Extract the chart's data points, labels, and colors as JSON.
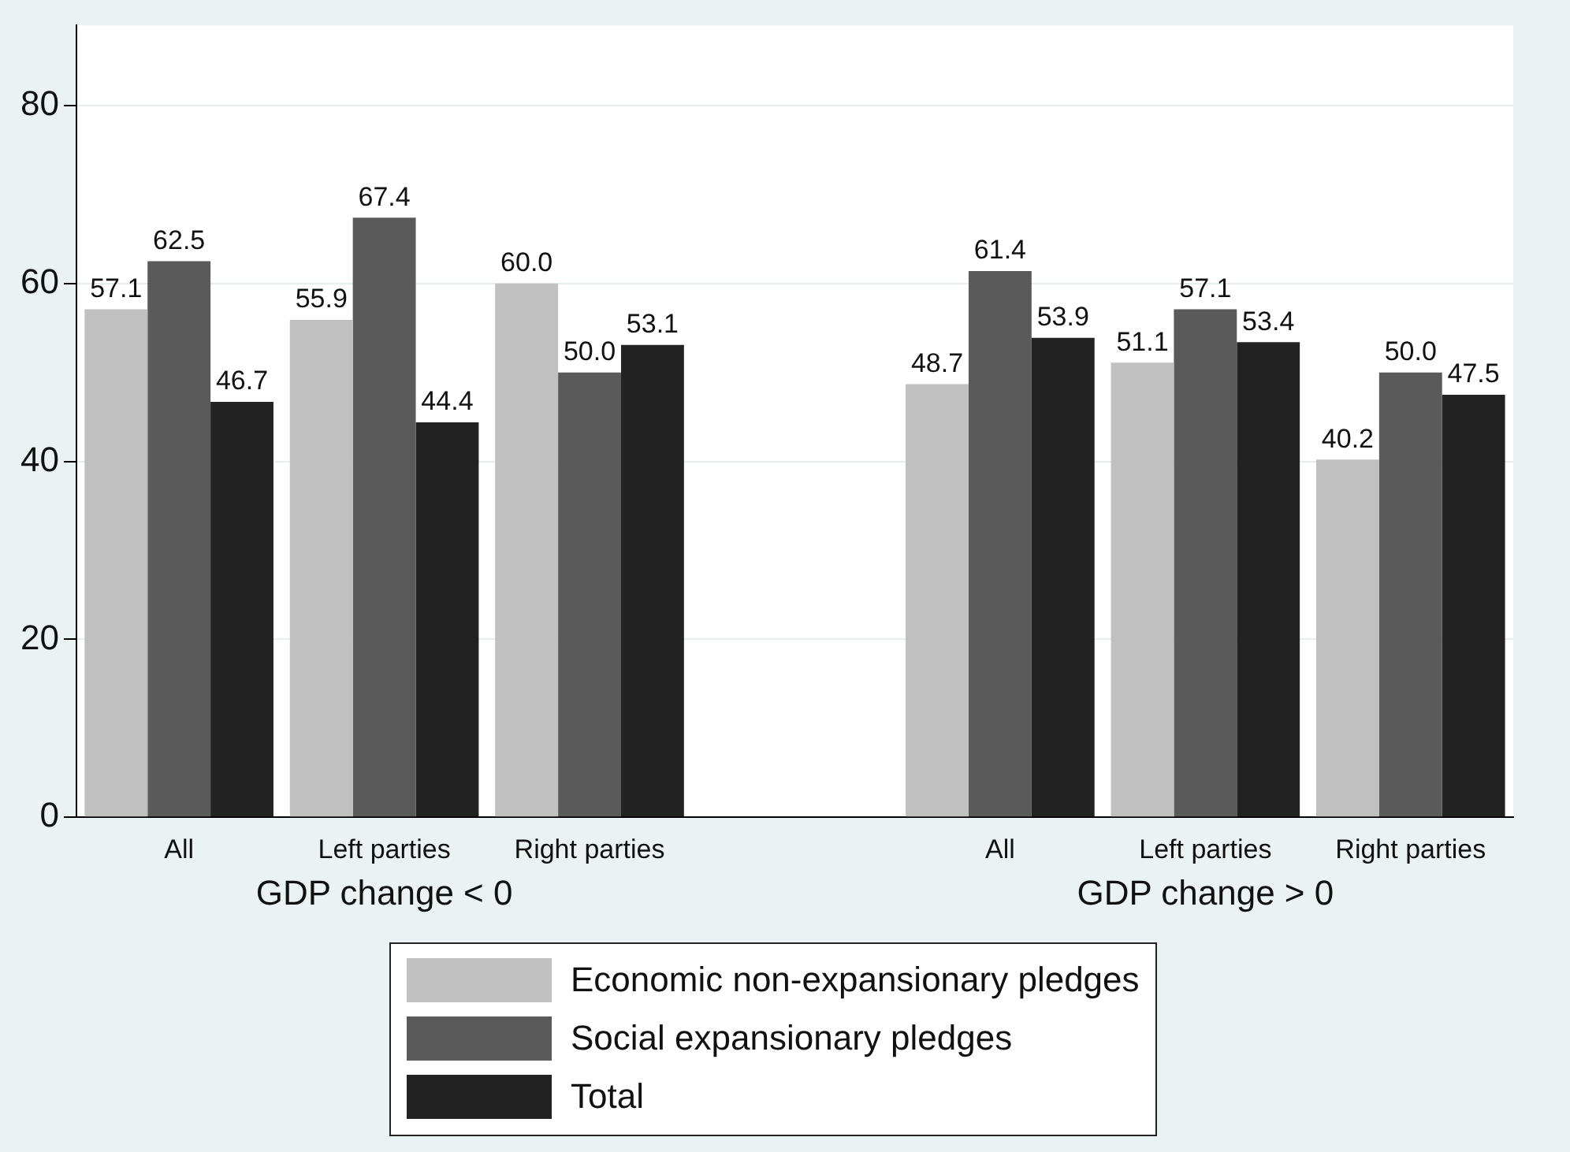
{
  "chart_data": {
    "type": "bar",
    "categories": [
      "All",
      "Left parties",
      "Right parties",
      null,
      "All",
      "Left parties",
      "Right parties"
    ],
    "series": [
      {
        "name": "Economic non-expansionary pledges",
        "color": "#c0c0c0",
        "values": [
          57.1,
          55.9,
          60.0,
          null,
          48.7,
          51.1,
          40.2
        ],
        "value_labels": [
          "57.1",
          "55.9",
          "60.0",
          null,
          "48.7",
          "51.1",
          "40.2"
        ]
      },
      {
        "name": "Social expansionary pledges",
        "color": "#5a5a5a",
        "values": [
          62.5,
          67.4,
          50.0,
          null,
          61.4,
          57.1,
          50.0
        ],
        "value_labels": [
          "62.5",
          "67.4",
          "50.0",
          null,
          "61.4",
          "57.1",
          "50.0"
        ]
      },
      {
        "name": "Total",
        "color": "#222222",
        "values": [
          46.7,
          44.4,
          53.1,
          null,
          53.9,
          53.4,
          47.5
        ],
        "value_labels": [
          "46.7",
          "44.4",
          "53.1",
          null,
          "53.9",
          "53.4",
          "47.5"
        ]
      }
    ],
    "annotations": [
      "GDP change < 0",
      "GDP change > 0"
    ],
    "ylim": [
      0,
      89
    ],
    "yticks": [
      0,
      20,
      40,
      60,
      80
    ],
    "grid": "y",
    "legend": "bottom"
  }
}
